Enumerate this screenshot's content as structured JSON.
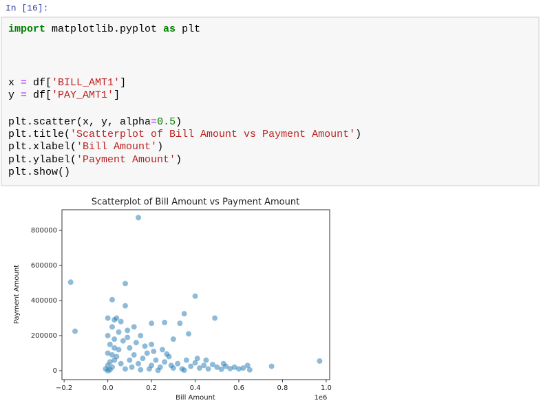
{
  "prompt": "In [16]:",
  "code": {
    "lines": [
      "import matplotlib.pyplot as plt",
      "x = df['BILL_AMT1']",
      "y = df['PAY_AMT1']",
      "plt.scatter(x, y, alpha=0.5)",
      "plt.title('Scatterplot of Bill Amount vs Payment Amount')",
      "plt.xlabel('Bill Amount')",
      "plt.ylabel('Payment Amount')",
      "plt.show()"
    ]
  },
  "chart_data": {
    "type": "scatter",
    "title": "Scatterplot of Bill Amount vs Payment Amount",
    "x_label": "Bill Amount",
    "y_label": "Payment Amount",
    "x_offset_label": "1e6",
    "color": "#1f77b4",
    "alpha": 0.5,
    "grid": false,
    "xlim": [
      -0.21,
      1.016
    ],
    "ylim": [
      -51000,
      918000
    ],
    "xticks": [
      {
        "value": -0.2,
        "label": "−0.2"
      },
      {
        "value": 0,
        "label": "0.0"
      },
      0.2,
      0.4,
      0.6,
      0.8,
      {
        "value": 1,
        "label": "1.0"
      }
    ],
    "yticks": [
      0,
      200000,
      400000,
      600000,
      800000
    ],
    "x": [
      0.14,
      -0.17,
      -0.15,
      0.08,
      0.02,
      0.08,
      0.4,
      0.35,
      0.49,
      0.26,
      0.2,
      0.33,
      0.37,
      0.97,
      0.75,
      0.3,
      0.04,
      0.06,
      0.12,
      0.09,
      0.15,
      0.2,
      0.25,
      0,
      0.01,
      0.02,
      0.03,
      0,
      0.01,
      0,
      0.02,
      0.03,
      0.05,
      0.04,
      0.06,
      0.08,
      0.1,
      0.12,
      0.1,
      0.07,
      0.14,
      0.16,
      0.18,
      0.2,
      0.22,
      0.24,
      0.26,
      0.28,
      0.3,
      0.32,
      0.34,
      0.36,
      0.38,
      0.4,
      0.42,
      0.44,
      0.46,
      0.48,
      0.5,
      0.52,
      0.54,
      0.56,
      0.58,
      0.6,
      0.62,
      0.64,
      0.65,
      0.05,
      0.09,
      0.13,
      0.17,
      0.21,
      0.27,
      0.11,
      0.15,
      0.19,
      0.23,
      0.29,
      0.35,
      0.41,
      0.45,
      0.53,
      0,
      0.01,
      0.02,
      0.03,
      -0.01,
      0,
      0.03
    ],
    "values": [
      873000,
      505000,
      225000,
      497000,
      405000,
      370000,
      425000,
      325000,
      300000,
      275000,
      270000,
      270000,
      210000,
      55000,
      25000,
      180000,
      300000,
      280000,
      250000,
      230000,
      200000,
      150000,
      120000,
      0,
      5000,
      20000,
      60000,
      100000,
      150000,
      200000,
      250000,
      180000,
      120000,
      80000,
      40000,
      10000,
      60000,
      90000,
      130000,
      170000,
      40000,
      70000,
      100000,
      30000,
      60000,
      20000,
      50000,
      80000,
      15000,
      40000,
      10000,
      60000,
      25000,
      45000,
      15000,
      30000,
      10000,
      35000,
      20000,
      8000,
      25000,
      12000,
      20000,
      10000,
      15000,
      30000,
      5000,
      220000,
      190000,
      160000,
      140000,
      110000,
      95000,
      20000,
      5000,
      10000,
      2000,
      30000,
      3000,
      70000,
      60000,
      40000,
      30000,
      50000,
      90000,
      130000,
      10000,
      300000,
      290000
    ]
  }
}
